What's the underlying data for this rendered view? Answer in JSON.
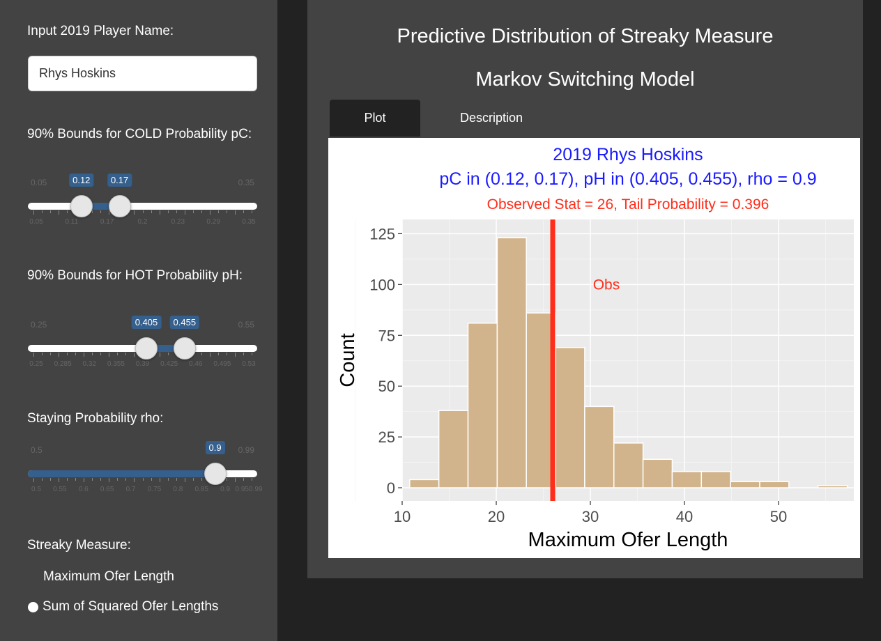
{
  "sidebar": {
    "player_label": "Input 2019 Player Name:",
    "player_value": "Rhys Hoskins",
    "cold": {
      "label": "90% Bounds for COLD Probability pC:",
      "min": 0.05,
      "max": 0.35,
      "lo": 0.12,
      "hi": 0.17,
      "min_label": "0.05",
      "max_label": "0.35",
      "lo_label": "0.12",
      "hi_label": "0.17",
      "tick_labels": [
        "0.05",
        "0.11",
        "0.17",
        "0.2",
        "0.23",
        "0.29",
        "0.35"
      ]
    },
    "hot": {
      "label": "90% Bounds for HOT Probability pH:",
      "min": 0.25,
      "max": 0.55,
      "lo": 0.405,
      "hi": 0.455,
      "min_label": "0.25",
      "max_label": "0.55",
      "lo_label": "0.405",
      "hi_label": "0.455",
      "tick_labels": [
        "0.25",
        "0.285",
        "0.32",
        "0.355",
        "0.39",
        "0.425",
        "0.46",
        "0.495",
        "0.53"
      ]
    },
    "rho": {
      "label": "Staying Probability rho:",
      "min": 0.5,
      "max": 0.99,
      "value": 0.9,
      "min_label": "0.5",
      "max_label": "0.99",
      "value_label": "0.9",
      "tick_labels": [
        "0.5",
        "0.55",
        "0.6",
        "0.65",
        "0.7",
        "0.75",
        "0.8",
        "0.85",
        "0.9",
        "0.950.99"
      ]
    },
    "measure_label": "Streaky Measure:",
    "measure_options": [
      "Maximum Ofer Length",
      "Sum of Squared Ofer Lengths"
    ],
    "measure_selected": "Maximum Ofer Length"
  },
  "main": {
    "title": "Predictive Distribution of Streaky Measure",
    "subtitle": "Markov Switching Model",
    "tabs": [
      "Plot",
      "Description"
    ],
    "active_tab": "Plot"
  },
  "chart_data": {
    "type": "bar",
    "title_line1": "2019 Rhys Hoskins",
    "title_line2": "pC in (0.12, 0.17), pH in (0.405, 0.455), rho = 0.9",
    "subtitle": "Observed Stat = 26, Tail Probability = 0.396",
    "xlabel": "Maximum Ofer Length",
    "ylabel": "Count",
    "xlim": [
      10,
      58
    ],
    "ylim": [
      0,
      125
    ],
    "xticks": [
      10,
      20,
      30,
      40,
      50
    ],
    "yticks": [
      0,
      25,
      50,
      75,
      100,
      125
    ],
    "bin_width": 3.1,
    "bin_starts": [
      10.8,
      13.9,
      17.0,
      20.1,
      23.2,
      26.3,
      29.4,
      32.5,
      35.6,
      38.7,
      41.8,
      44.9,
      48.0,
      51.1,
      54.2
    ],
    "values": [
      4,
      38,
      81,
      123,
      86,
      69,
      40,
      22,
      14,
      8,
      8,
      3,
      3,
      0,
      1
    ],
    "observed": 26,
    "observed_label": "Obs",
    "fill_color": "#d2b48c",
    "line_color": "#ff2d1a",
    "title_color": "#1a1aff",
    "subtitle_color": "#ff2d1a",
    "grid": true
  }
}
